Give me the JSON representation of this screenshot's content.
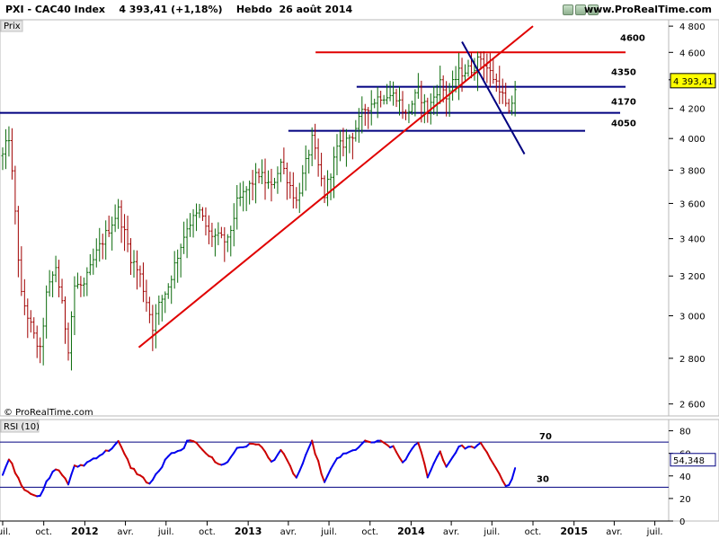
{
  "header": {
    "title": "PXI - CAC40 Index    4 393,41 (+1,18%)    Hebdo  26 août 2014",
    "site": "www.ProRealTime.com"
  },
  "price_panel": {
    "tag": "Prix",
    "copyright": "© ProRealTime.com",
    "last_price_label": "4 393,41",
    "levels": [
      {
        "label": "4600",
        "value": 4600,
        "color": "#e00000",
        "start": "2013-06-01"
      },
      {
        "label": "4350",
        "value": 4350,
        "color": "#000080",
        "start": "2013-09-01"
      },
      {
        "label": "4170",
        "value": 4170,
        "color": "#000080",
        "start": "2011-06-01"
      },
      {
        "label": "4050",
        "value": 4050,
        "color": "#000080",
        "start": "2013-04-01"
      }
    ]
  },
  "rsi_panel": {
    "tag": "RSI (10)",
    "last_value_label": "54,348",
    "level70_label": "70",
    "level30_label": "30"
  },
  "x_axis": {
    "labels": [
      {
        "text": "oct.",
        "bold": false,
        "date": "2011-10-01"
      },
      {
        "text": "2012",
        "bold": true,
        "date": "2012-01-01"
      },
      {
        "text": "avr.",
        "bold": false,
        "date": "2012-04-01"
      },
      {
        "text": "juil.",
        "bold": false,
        "date": "2012-07-01"
      },
      {
        "text": "oct.",
        "bold": false,
        "date": "2012-10-01"
      },
      {
        "text": "2013",
        "bold": true,
        "date": "2013-01-01"
      },
      {
        "text": "avr.",
        "bold": false,
        "date": "2013-04-01"
      },
      {
        "text": "juil.",
        "bold": false,
        "date": "2013-07-01"
      },
      {
        "text": "oct.",
        "bold": false,
        "date": "2013-10-01"
      },
      {
        "text": "2014",
        "bold": true,
        "date": "2014-01-01"
      },
      {
        "text": "avr.",
        "bold": false,
        "date": "2014-04-01"
      },
      {
        "text": "juil.",
        "bold": false,
        "date": "2014-07-01"
      },
      {
        "text": "oct.",
        "bold": false,
        "date": "2014-10-01"
      },
      {
        "text": "2015",
        "bold": true,
        "date": "2015-01-01"
      },
      {
        "text": "avr.",
        "bold": false,
        "date": "2015-04-01"
      },
      {
        "text": "juil.",
        "bold": false,
        "date": "2015-07-01"
      },
      {
        "text": "juil.",
        "bold": false,
        "date": "2011-07-01"
      }
    ]
  },
  "chart_data": [
    {
      "type": "candlestick",
      "title": "PXI - CAC40 Index",
      "timeframe": "Hebdo",
      "y_scale": "log",
      "ylim": [
        2550,
        4850
      ],
      "xlim": [
        "2011-06-25",
        "2015-08-01"
      ],
      "yticks": [
        2600,
        2800,
        3000,
        3200,
        3400,
        3600,
        3800,
        4000,
        4200,
        4400,
        4600,
        4800
      ],
      "ytick_labels": [
        "2 600",
        "2 800",
        "3 000",
        "3 200",
        "3 400",
        "3 600",
        "3 800",
        "4 000",
        "4 200",
        "4 400",
        "4 600",
        "4 800"
      ],
      "anchors": [
        [
          "2011-07-01",
          3890
        ],
        [
          "2011-07-15",
          4010
        ],
        [
          "2011-08-05",
          3300
        ],
        [
          "2011-08-12",
          3100
        ],
        [
          "2011-09-09",
          2900
        ],
        [
          "2011-09-23",
          2830
        ],
        [
          "2011-10-07",
          3100
        ],
        [
          "2011-10-28",
          3250
        ],
        [
          "2011-11-25",
          2850
        ],
        [
          "2011-12-09",
          3150
        ],
        [
          "2011-12-30",
          3150
        ],
        [
          "2012-01-27",
          3320
        ],
        [
          "2012-03-16",
          3560
        ],
        [
          "2012-04-13",
          3300
        ],
        [
          "2012-05-04",
          3200
        ],
        [
          "2012-06-01",
          2950
        ],
        [
          "2012-06-15",
          3050
        ],
        [
          "2012-07-06",
          3150
        ],
        [
          "2012-08-17",
          3470
        ],
        [
          "2012-09-14",
          3550
        ],
        [
          "2012-10-05",
          3430
        ],
        [
          "2012-11-16",
          3380
        ],
        [
          "2012-12-07",
          3600
        ],
        [
          "2013-01-25",
          3780
        ],
        [
          "2013-02-22",
          3690
        ],
        [
          "2013-03-15",
          3850
        ],
        [
          "2013-04-19",
          3610
        ],
        [
          "2013-05-24",
          3990
        ],
        [
          "2013-06-21",
          3650
        ],
        [
          "2013-07-19",
          3930
        ],
        [
          "2013-08-23",
          4030
        ],
        [
          "2013-09-20",
          4200
        ],
        [
          "2013-10-25",
          4290
        ],
        [
          "2013-11-29",
          4290
        ],
        [
          "2013-12-20",
          4150
        ],
        [
          "2014-01-17",
          4320
        ],
        [
          "2014-02-07",
          4180
        ],
        [
          "2014-03-07",
          4380
        ],
        [
          "2014-03-21",
          4280
        ],
        [
          "2014-04-18",
          4450
        ],
        [
          "2014-05-16",
          4480
        ],
        [
          "2014-06-06",
          4560
        ],
        [
          "2014-06-27",
          4450
        ],
        [
          "2014-07-18",
          4350
        ],
        [
          "2014-08-08",
          4150
        ],
        [
          "2014-08-22",
          4340
        ],
        [
          "2014-08-26",
          4393.41
        ]
      ],
      "trendlines": [
        {
          "color": "#e00000",
          "from": [
            "2012-05-01",
            2850
          ],
          "to": [
            "2014-10-01",
            4800
          ]
        },
        {
          "color": "#000080",
          "from": [
            "2014-04-25",
            4680
          ],
          "to": [
            "2014-09-12",
            3900
          ]
        }
      ],
      "last_value": 4393.41
    },
    {
      "type": "line",
      "title": "RSI (10)",
      "ylim": [
        0,
        90
      ],
      "yticks": [
        0,
        20,
        40,
        60,
        80
      ],
      "ytick_labels": [
        "0",
        "20",
        "40",
        "60",
        "80"
      ],
      "levels": [
        70,
        30
      ],
      "series": [
        {
          "color": "#0000ee",
          "down_color": "#cc0000",
          "anchors": [
            [
              "2011-07-01",
              40
            ],
            [
              "2011-07-15",
              56
            ],
            [
              "2011-08-05",
              38
            ],
            [
              "2011-08-19",
              28
            ],
            [
              "2011-09-09",
              24
            ],
            [
              "2011-09-23",
              21
            ],
            [
              "2011-10-07",
              34
            ],
            [
              "2011-10-28",
              47
            ],
            [
              "2011-11-18",
              38
            ],
            [
              "2011-11-25",
              33
            ],
            [
              "2011-12-09",
              48
            ],
            [
              "2011-12-30",
              50
            ],
            [
              "2012-01-27",
              57
            ],
            [
              "2012-02-24",
              63
            ],
            [
              "2012-03-16",
              70
            ],
            [
              "2012-04-13",
              48
            ],
            [
              "2012-05-04",
              40
            ],
            [
              "2012-05-25",
              33
            ],
            [
              "2012-06-15",
              44
            ],
            [
              "2012-07-06",
              58
            ],
            [
              "2012-08-03",
              62
            ],
            [
              "2012-08-17",
              70
            ],
            [
              "2012-09-07",
              70
            ],
            [
              "2012-10-05",
              58
            ],
            [
              "2012-10-26",
              50
            ],
            [
              "2012-11-16",
              52
            ],
            [
              "2012-12-07",
              65
            ],
            [
              "2013-01-25",
              69
            ],
            [
              "2013-02-22",
              52
            ],
            [
              "2013-03-15",
              63
            ],
            [
              "2013-04-19",
              38
            ],
            [
              "2013-05-24",
              70
            ],
            [
              "2013-06-21",
              34
            ],
            [
              "2013-07-19",
              56
            ],
            [
              "2013-08-23",
              62
            ],
            [
              "2013-09-20",
              70
            ],
            [
              "2013-10-25",
              70
            ],
            [
              "2013-11-22",
              65
            ],
            [
              "2013-12-13",
              52
            ],
            [
              "2014-01-17",
              70
            ],
            [
              "2014-02-07",
              40
            ],
            [
              "2014-03-07",
              62
            ],
            [
              "2014-03-21",
              48
            ],
            [
              "2014-04-18",
              66
            ],
            [
              "2014-05-16",
              65
            ],
            [
              "2014-06-06",
              68
            ],
            [
              "2014-06-27",
              56
            ],
            [
              "2014-07-18",
              42
            ],
            [
              "2014-08-01",
              30
            ],
            [
              "2014-08-15",
              36
            ],
            [
              "2014-08-26",
              54.348
            ]
          ]
        }
      ],
      "last_value": 54.348
    }
  ]
}
